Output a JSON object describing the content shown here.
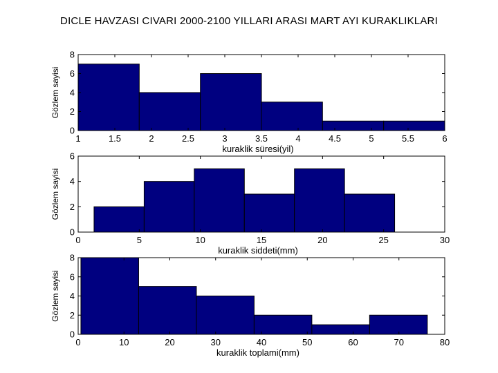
{
  "page_title": "DICLE HAVZASI CIVARI 2000-2100 YILLARI ARASI MART AYI KURAKLIKLARI",
  "colors": {
    "bar_fill": "#000080",
    "bar_edge": "#000000",
    "axis": "#000000"
  },
  "chart_data": [
    {
      "type": "bar",
      "title": "",
      "xlabel": "kuraklik süresi(yil)",
      "ylabel": "Gözlem sayisi",
      "xlim": [
        1,
        6
      ],
      "ylim": [
        0,
        8
      ],
      "xticks": [
        "1",
        "1.5",
        "2",
        "2.5",
        "3",
        "3.5",
        "4",
        "4.5",
        "5",
        "5.5",
        "6"
      ],
      "yticks": [
        "0",
        "2",
        "4",
        "6",
        "8"
      ],
      "bins": [
        {
          "x0": 1.0,
          "x1": 1.833,
          "value": 7
        },
        {
          "x0": 1.833,
          "x1": 2.667,
          "value": 4
        },
        {
          "x0": 2.667,
          "x1": 3.5,
          "value": 6
        },
        {
          "x0": 3.5,
          "x1": 4.333,
          "value": 3
        },
        {
          "x0": 4.333,
          "x1": 5.167,
          "value": 1
        },
        {
          "x0": 5.167,
          "x1": 6.0,
          "value": 1
        }
      ],
      "grid": false
    },
    {
      "type": "bar",
      "title": "",
      "xlabel": "kuraklik siddeti(mm)",
      "ylabel": "Gözlem sayisi",
      "xlim": [
        0,
        30
      ],
      "ylim": [
        0,
        6
      ],
      "xticks": [
        "0",
        "5",
        "10",
        "15",
        "20",
        "25",
        "30"
      ],
      "yticks": [
        "0",
        "2",
        "4",
        "6"
      ],
      "bins": [
        {
          "x0": 1.3,
          "x1": 5.4,
          "value": 2
        },
        {
          "x0": 5.4,
          "x1": 9.5,
          "value": 4
        },
        {
          "x0": 9.5,
          "x1": 13.6,
          "value": 5
        },
        {
          "x0": 13.6,
          "x1": 17.7,
          "value": 3
        },
        {
          "x0": 17.7,
          "x1": 21.8,
          "value": 5
        },
        {
          "x0": 21.8,
          "x1": 25.9,
          "value": 3
        }
      ],
      "grid": false
    },
    {
      "type": "bar",
      "title": "",
      "xlabel": "kuraklik toplami(mm)",
      "ylabel": "Gözlem sayisi",
      "xlim": [
        0,
        80
      ],
      "ylim": [
        0,
        8
      ],
      "xticks": [
        "0",
        "10",
        "20",
        "30",
        "40",
        "50",
        "60",
        "70",
        "80"
      ],
      "yticks": [
        "0",
        "2",
        "4",
        "6",
        "8"
      ],
      "bins": [
        {
          "x0": 0.6,
          "x1": 13.2,
          "value": 8
        },
        {
          "x0": 13.2,
          "x1": 25.8,
          "value": 5
        },
        {
          "x0": 25.8,
          "x1": 38.4,
          "value": 4
        },
        {
          "x0": 38.4,
          "x1": 51.0,
          "value": 2
        },
        {
          "x0": 51.0,
          "x1": 63.6,
          "value": 1
        },
        {
          "x0": 63.6,
          "x1": 76.2,
          "value": 2
        }
      ],
      "grid": false
    }
  ]
}
